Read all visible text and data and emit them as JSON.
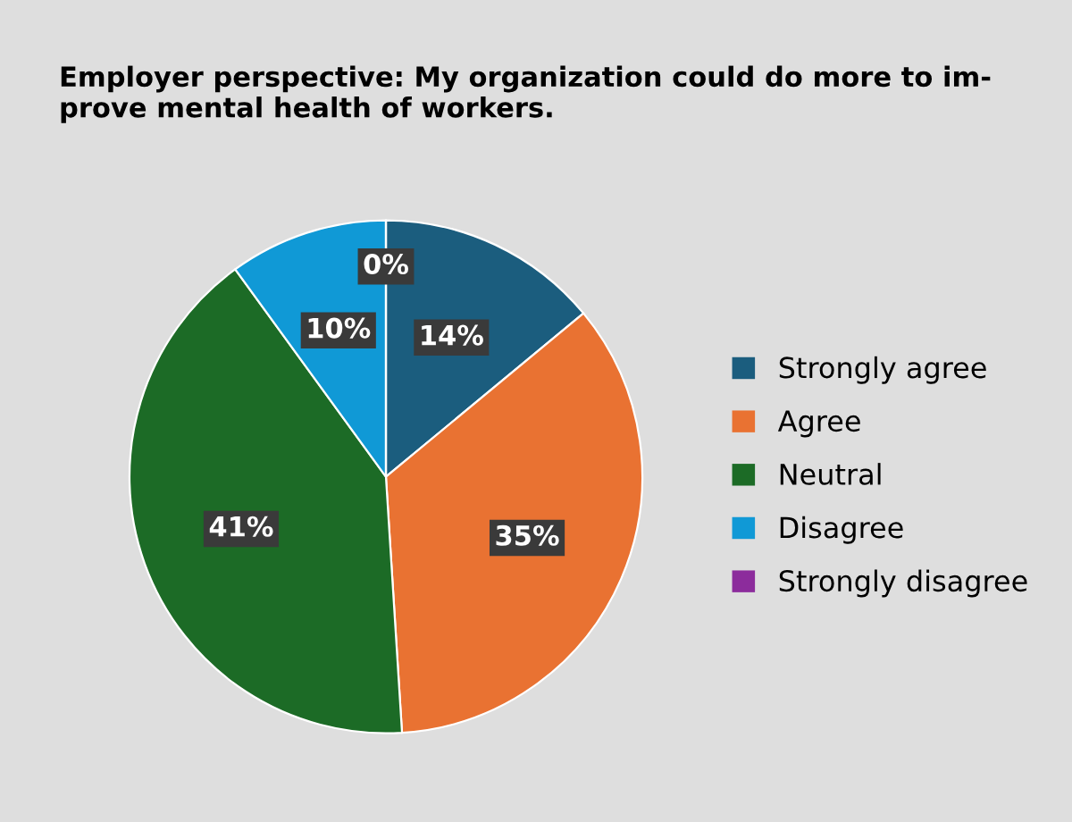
{
  "chart_data": {
    "type": "pie",
    "title": "Employer perspective: My organization could do more to im-\nprove mental health of workers.",
    "categories": [
      "Strongly agree",
      "Agree",
      "Neutral",
      "Disagree",
      "Strongly disagree"
    ],
    "values": [
      14,
      35,
      41,
      10,
      0
    ],
    "colors": [
      "#1b5d7e",
      "#e97232",
      "#1c6b26",
      "#1099d6",
      "#8c2c9c"
    ],
    "value_labels": [
      "14%",
      "35%",
      "41%",
      "10%",
      "0%"
    ],
    "legend": "right"
  }
}
